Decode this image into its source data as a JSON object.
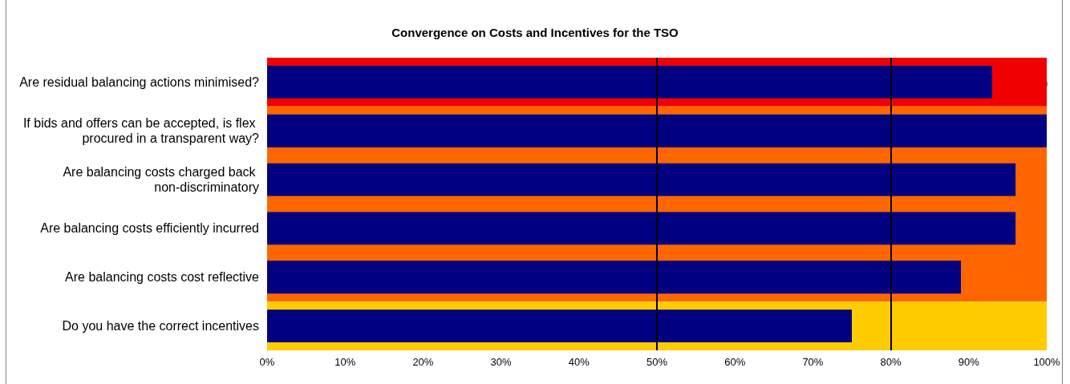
{
  "chart_data": {
    "type": "bar",
    "orientation": "horizontal",
    "title": "Convergence on Costs and Incentives for the TSO",
    "categories": [
      "Are residual balancing actions minimised?",
      "If bids and offers can be accepted, is flex procured in a transparent way?",
      "Are balancing costs charged back non-discriminatory",
      "Are balancing costs efficiently incurred",
      "Are balancing costs cost reflective",
      "Do you have the correct incentives"
    ],
    "series": [
      {
        "color": "#000080",
        "values": [
          93,
          100,
          96,
          96,
          89,
          75
        ]
      }
    ],
    "xlim": [
      0,
      100
    ],
    "xticks": [
      {
        "value": 0,
        "label": "0%"
      },
      {
        "value": 10,
        "label": "10%"
      },
      {
        "value": 20,
        "label": "20%"
      },
      {
        "value": 30,
        "label": "30%"
      },
      {
        "value": 40,
        "label": "40%"
      },
      {
        "value": 50,
        "label": "50%"
      },
      {
        "value": 60,
        "label": "60%"
      },
      {
        "value": 70,
        "label": "70%"
      },
      {
        "value": 80,
        "label": "80%"
      },
      {
        "value": 90,
        "label": "90%"
      },
      {
        "value": 100,
        "label": "100%"
      }
    ],
    "bands": [
      {
        "axis": "y",
        "from": "Are residual balancing actions minimised?",
        "to": "Are residual balancing actions minimised?",
        "color": "#f00000"
      },
      {
        "axis": "y",
        "from": "If bids and offers can be accepted, is flex procured in a transparent way?",
        "to": "Are balancing costs cost reflective",
        "color": "#ff6600"
      },
      {
        "axis": "y",
        "from": "Do you have the correct incentives",
        "to": "Do you have the correct incentives",
        "color": "#ffcc00"
      }
    ],
    "ref_lines": [
      {
        "axis": "x",
        "value": 50,
        "color": "#000000"
      },
      {
        "axis": "x",
        "value": 80,
        "color": "#000000"
      }
    ],
    "grid": false
  }
}
